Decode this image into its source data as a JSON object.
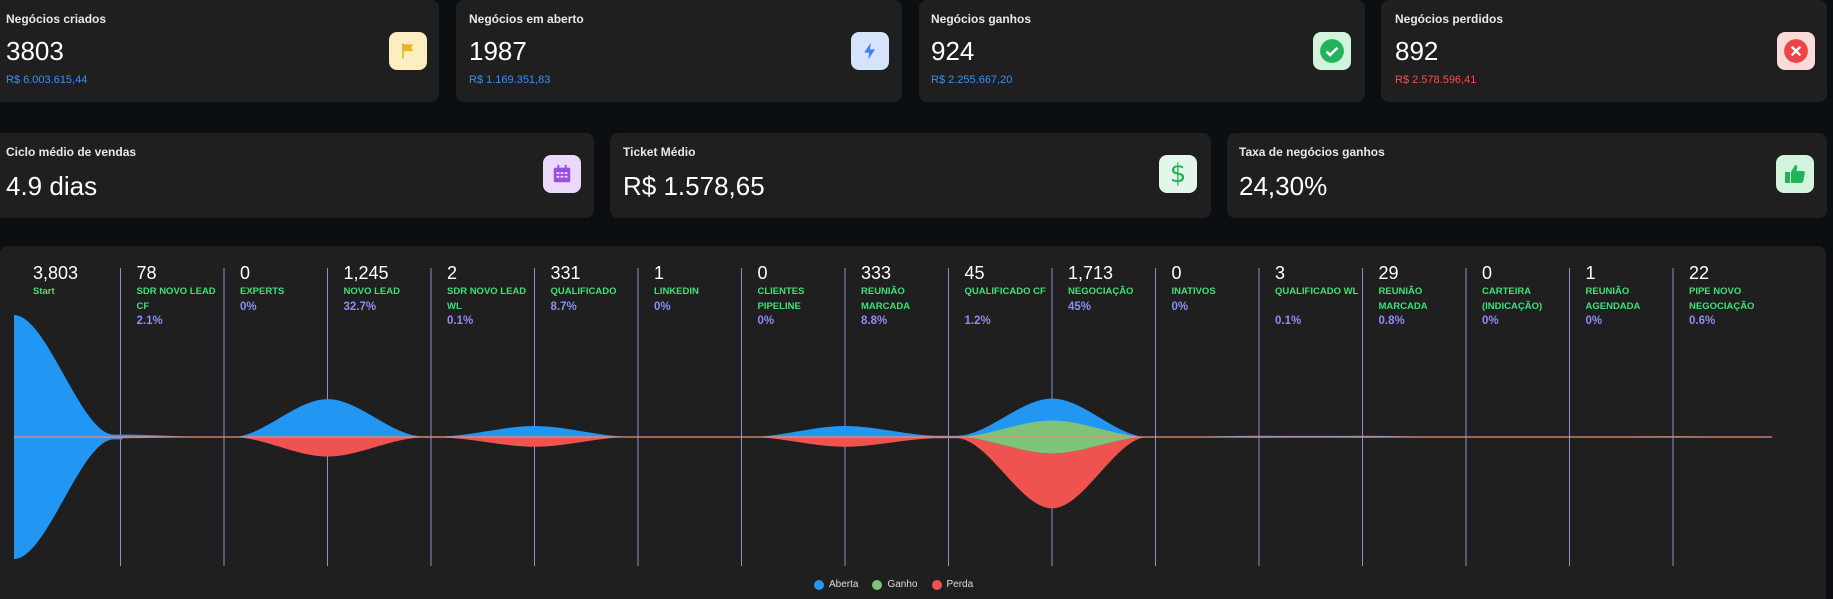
{
  "kpis_row1": [
    {
      "title": "Negócios criados",
      "value": "3803",
      "sub": "R$ 6.003.615,44",
      "sub_color": "#3b8ff0",
      "icon": "flag-icon",
      "icon_bg": "#fdeec2",
      "icon_color": "#e5b628"
    },
    {
      "title": "Negócios em aberto",
      "value": "1987",
      "sub": "R$ 1.169.351,83",
      "sub_color": "#3b8ff0",
      "icon": "lightning-icon",
      "icon_bg": "#d6e4fb",
      "icon_color": "#3b82f6"
    },
    {
      "title": "Negócios ganhos",
      "value": "924",
      "sub": "R$ 2.255.667,20",
      "sub_color": "#3b8ff0",
      "icon": "check-circle-icon",
      "icon_bg": "#d2f3dc",
      "icon_color": "#22b35a"
    },
    {
      "title": "Negócios perdidos",
      "value": "892",
      "sub": "R$ 2.578.596,41",
      "sub_color": "#f0524c",
      "icon": "x-circle-icon",
      "icon_bg": "#fbdada",
      "icon_color": "#ef4444"
    }
  ],
  "kpis_row2": [
    {
      "title": "Ciclo médio de vendas",
      "value": "4.9 dias",
      "icon": "calendar-icon",
      "icon_bg": "#ead9fb",
      "icon_color": "#9b4de0"
    },
    {
      "title": "Ticket Médio",
      "value": "R$ 1.578,65",
      "icon": "dollar-icon",
      "icon_bg": "#e2f6ea",
      "icon_color": "#22b35a"
    },
    {
      "title": "Taxa de negócios ganhos",
      "value": "24,30%",
      "icon": "thumbs-up-icon",
      "icon_bg": "#d2f3dc",
      "icon_color": "#22b35a"
    }
  ],
  "funnel": {
    "stages": [
      {
        "count": "3,803",
        "name": "Start",
        "pct": ""
      },
      {
        "count": "78",
        "name": "SDR NOVO LEAD CF",
        "pct": "2.1%"
      },
      {
        "count": "0",
        "name": "EXPERTS",
        "pct": "0%"
      },
      {
        "count": "1,245",
        "name": "NOVO LEAD",
        "pct": "32.7%"
      },
      {
        "count": "2",
        "name": "SDR NOVO LEAD WL",
        "pct": "0.1%"
      },
      {
        "count": "331",
        "name": "QUALIFICADO",
        "pct": "8.7%"
      },
      {
        "count": "1",
        "name": "LINKEDIN",
        "pct": "0%"
      },
      {
        "count": "0",
        "name": "CLIENTES PIPELINE",
        "pct": "0%"
      },
      {
        "count": "333",
        "name": "REUNIÃO MARCADA",
        "pct": "8.8%"
      },
      {
        "count": "45",
        "name": "QUALIFICADO CF",
        "pct": "1.2%"
      },
      {
        "count": "1,713",
        "name": "NEGOCIAÇÃO",
        "pct": "45%"
      },
      {
        "count": "0",
        "name": "INATIVOS",
        "pct": "0%"
      },
      {
        "count": "3",
        "name": "QUALIFICADO WL",
        "pct": "0.1%"
      },
      {
        "count": "29",
        "name": "REUNIÃO MARCADA",
        "pct": "0.8%"
      },
      {
        "count": "0",
        "name": "CARTEIRA (INDICAÇÃO)",
        "pct": "0%"
      },
      {
        "count": "1",
        "name": "REUNIÃO AGENDADA",
        "pct": "0%"
      },
      {
        "count": "22",
        "name": "PIPE NOVO NEGOCIAÇÃO",
        "pct": "0.6%"
      }
    ],
    "legend": [
      {
        "label": "Aberta",
        "color": "#2196f3"
      },
      {
        "label": "Ganho",
        "color": "#7dc47a"
      },
      {
        "label": "Perda",
        "color": "#ef5350"
      }
    ],
    "bulges": [
      {
        "aberta": 1.0,
        "ganho": 0,
        "perda": 0
      },
      {
        "aberta": 0.02,
        "ganho": 0,
        "perda": 0.01
      },
      {
        "aberta": 0,
        "ganho": 0,
        "perda": 0
      },
      {
        "aberta": 0.31,
        "ganho": 0,
        "perda": 0.16
      },
      {
        "aberta": 0.005,
        "ganho": 0,
        "perda": 0.005
      },
      {
        "aberta": 0.09,
        "ganho": 0,
        "perda": 0.08
      },
      {
        "aberta": 0.003,
        "ganho": 0,
        "perda": 0
      },
      {
        "aberta": 0,
        "ganho": 0,
        "perda": 0
      },
      {
        "aberta": 0.09,
        "ganho": 0,
        "perda": 0.08
      },
      {
        "aberta": 0.01,
        "ganho": 0,
        "perda": 0.01
      },
      {
        "aberta": 0.18,
        "ganho": 0.27,
        "perda": 0.45
      },
      {
        "aberta": 0,
        "ganho": 0,
        "perda": 0
      },
      {
        "aberta": 0.01,
        "ganho": 0,
        "perda": 0.005
      },
      {
        "aberta": 0.01,
        "ganho": 0,
        "perda": 0.005
      },
      {
        "aberta": 0,
        "ganho": 0,
        "perda": 0
      },
      {
        "aberta": 0.003,
        "ganho": 0,
        "perda": 0
      },
      {
        "aberta": 0.006,
        "ganho": 0,
        "perda": 0.004
      }
    ]
  }
}
